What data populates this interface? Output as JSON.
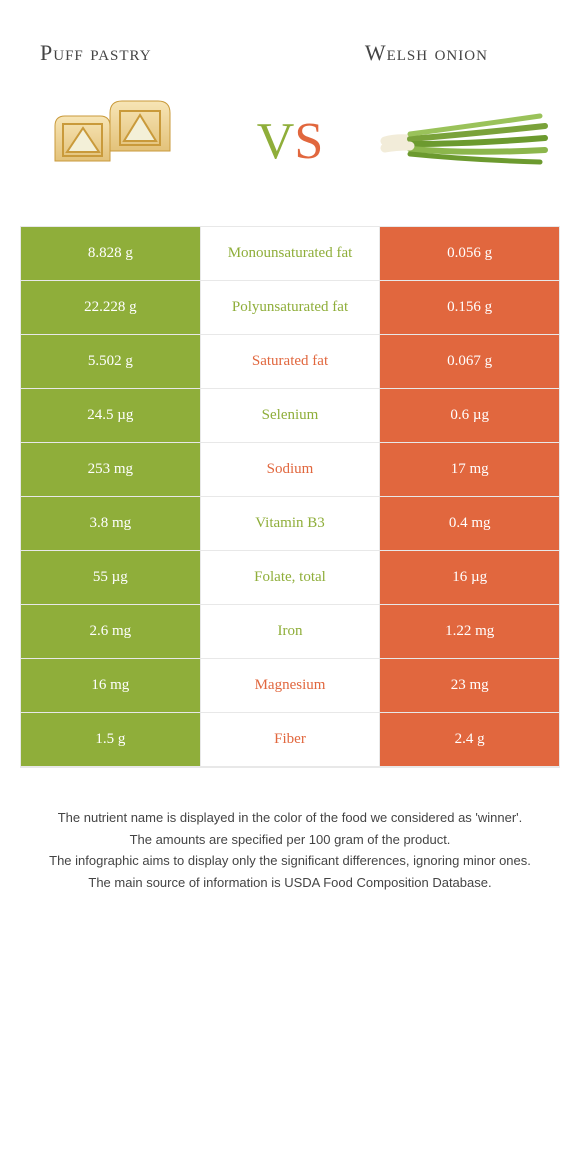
{
  "colors": {
    "green": "#8fae3a",
    "orange": "#e1673e",
    "border": "#e8e8e8",
    "background": "#ffffff",
    "text": "#444444"
  },
  "header": {
    "left_title": "Puff pastry",
    "right_title": "Welsh onion",
    "vs_v": "V",
    "vs_s": "S"
  },
  "table": {
    "rows": [
      {
        "left": "8.828 g",
        "label": "Monounsaturated fat",
        "right": "0.056 g",
        "winner": "left"
      },
      {
        "left": "22.228 g",
        "label": "Polyunsaturated fat",
        "right": "0.156 g",
        "winner": "left"
      },
      {
        "left": "5.502 g",
        "label": "Saturated fat",
        "right": "0.067 g",
        "winner": "right"
      },
      {
        "left": "24.5 µg",
        "label": "Selenium",
        "right": "0.6 µg",
        "winner": "left"
      },
      {
        "left": "253 mg",
        "label": "Sodium",
        "right": "17 mg",
        "winner": "right"
      },
      {
        "left": "3.8 mg",
        "label": "Vitamin B3",
        "right": "0.4 mg",
        "winner": "left"
      },
      {
        "left": "55 µg",
        "label": "Folate, total",
        "right": "16 µg",
        "winner": "left"
      },
      {
        "left": "2.6 mg",
        "label": "Iron",
        "right": "1.22 mg",
        "winner": "left"
      },
      {
        "left": "16 mg",
        "label": "Magnesium",
        "right": "23 mg",
        "winner": "right"
      },
      {
        "left": "1.5 g",
        "label": "Fiber",
        "right": "2.4 g",
        "winner": "right"
      }
    ]
  },
  "footnotes": {
    "line1": "The nutrient name is displayed in the color of the food we considered as 'winner'.",
    "line2": "The amounts are specified per 100 gram of the product.",
    "line3": "The infographic aims to display only the significant differences, ignoring minor ones.",
    "line4": "The main source of information is USDA Food Composition Database."
  },
  "icons": {
    "left": "puff-pastry",
    "right": "welsh-onion"
  }
}
